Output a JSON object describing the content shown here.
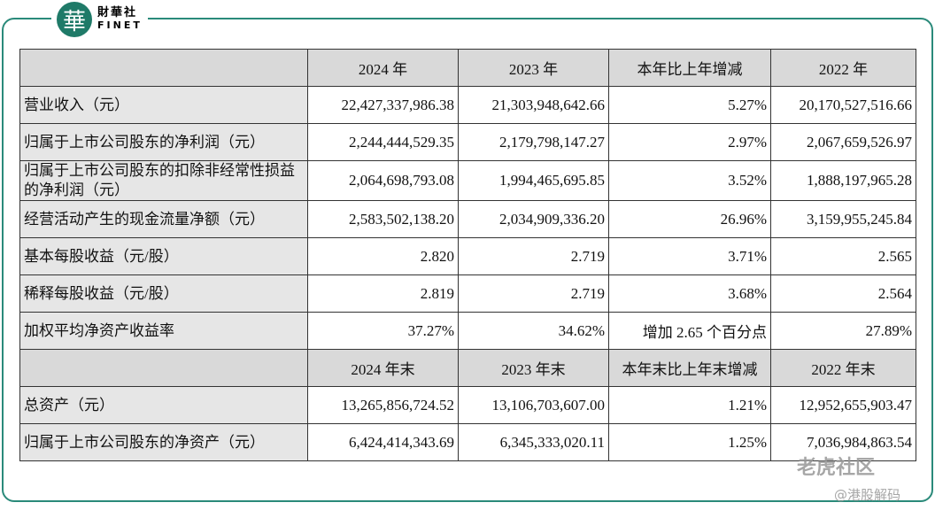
{
  "logo": {
    "mark": "華",
    "name": "財華社",
    "latin": "FINET"
  },
  "table": {
    "header": [
      "2024 年",
      "2023 年",
      "本年比上年增减",
      "2022 年"
    ],
    "rows": [
      [
        "营业收入（元）",
        "22,427,337,986.38",
        "21,303,948,642.66",
        "5.27%",
        "20,170,527,516.66"
      ],
      [
        "归属于上市公司股东的净利润（元）",
        "2,244,444,529.35",
        "2,179,798,147.27",
        "2.97%",
        "2,067,659,526.97"
      ],
      [
        "归属于上市公司股东的扣除非经常性损益的净利润（元）",
        "2,064,698,793.08",
        "1,994,465,695.85",
        "3.52%",
        "1,888,197,965.28"
      ],
      [
        "经营活动产生的现金流量净额（元）",
        "2,583,502,138.20",
        "2,034,909,336.20",
        "26.96%",
        "3,159,955,245.84"
      ],
      [
        "基本每股收益（元/股）",
        "2.820",
        "2.719",
        "3.71%",
        "2.565"
      ],
      [
        "稀释每股收益（元/股）",
        "2.819",
        "2.719",
        "3.68%",
        "2.564"
      ],
      [
        "加权平均净资产收益率",
        "37.27%",
        "34.62%",
        "增加 2.65 个百分点",
        "27.89%"
      ]
    ],
    "header2": [
      "2024 年末",
      "2023 年末",
      "本年末比上年末增减",
      "2022 年末"
    ],
    "rows2": [
      [
        "总资产（元）",
        "13,265,856,724.52",
        "13,106,703,607.00",
        "1.21%",
        "12,952,655,903.47"
      ],
      [
        "归属于上市公司股东的净资产（元）",
        "6,424,414,343.69",
        "6,345,333,020.11",
        "1.25%",
        "7,036,984,863.54"
      ]
    ]
  },
  "watermarks": [
    "老虎社区",
    "@港股解码"
  ]
}
